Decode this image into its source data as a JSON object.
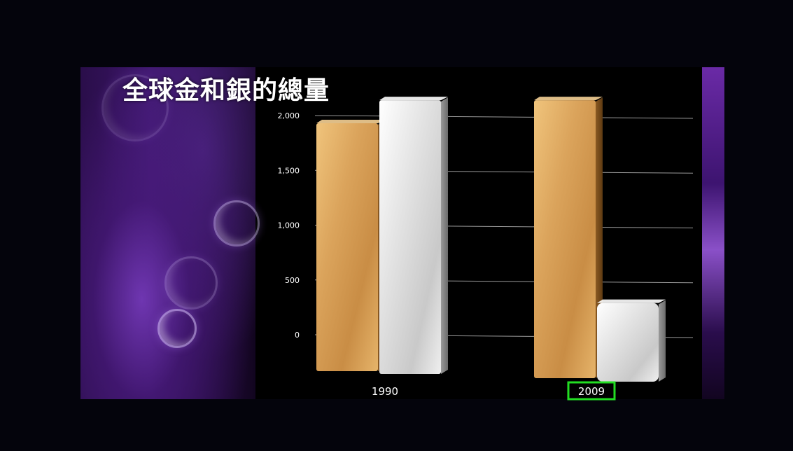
{
  "chart_data": {
    "type": "bar",
    "title": "全球金和銀的總量",
    "categories": [
      "1990",
      "2009"
    ],
    "series": [
      {
        "values": [
          1930,
          2140
        ],
        "color": "#d9a35a"
      },
      {
        "values": [
          2140,
          290
        ],
        "color": "#e6e6e6"
      }
    ],
    "yticks": [
      "0",
      "500",
      "1,000",
      "1,500",
      "2,000"
    ],
    "ytick_values": [
      0,
      500,
      1000,
      1500,
      2000
    ],
    "ylim": [
      0,
      2000
    ],
    "grid": true,
    "highlighted_category": "2009",
    "highlight_color": "#22dd22"
  }
}
